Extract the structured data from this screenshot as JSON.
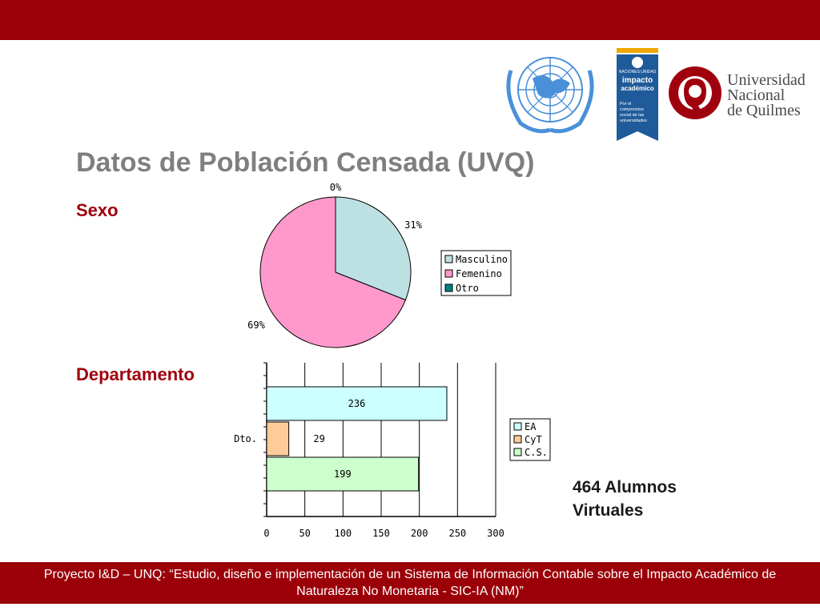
{
  "header": {},
  "footer": {
    "text": "Proyecto I&D – UNQ: “Estudio, diseño e implementación de un Sistema de Información Contable sobre el Impacto Académico de Naturaleza No Monetaria - SIC-IA (NM)”"
  },
  "title": "Datos de Población Censada (UVQ)",
  "sections": {
    "sexo": "Sexo",
    "departamento": "Departamento"
  },
  "summary": {
    "line1": "464 Alumnos",
    "line2": "Virtuales"
  },
  "logos": {
    "un_logo": "un-emblem-icon",
    "impacto": {
      "top": "NACIONES UNIDAS",
      "line1": "impacto",
      "line2": "académico",
      "sub1": "Por el",
      "sub2": "compromiso",
      "sub3": "social de las",
      "sub4": "universidades"
    },
    "unq": {
      "line1": "Universidad",
      "line2": "Nacional",
      "line3": "de Quilmes"
    }
  },
  "colors": {
    "brand": "#9b0008",
    "section": "#a0000d",
    "title": "#7f7f7f"
  },
  "chart_data": [
    {
      "type": "pie",
      "labels": [
        "Masculino",
        "Femenino",
        "Otro"
      ],
      "values": [
        31,
        69,
        0
      ],
      "value_labels": [
        "31%",
        "69%",
        "0%"
      ],
      "colors": [
        "#bde0e3",
        "#ff99cc",
        "#008080"
      ],
      "legend": "right"
    },
    {
      "type": "bar",
      "orientation": "horizontal",
      "categories": [
        "Dto."
      ],
      "series": [
        {
          "name": "EA",
          "values": [
            236
          ],
          "color": "#ccffff"
        },
        {
          "name": "CyT",
          "values": [
            29
          ],
          "color": "#ffcc99"
        },
        {
          "name": "C.S.",
          "values": [
            199
          ],
          "color": "#ccffcc"
        }
      ],
      "xlim": [
        0,
        300
      ],
      "xticks": [
        0,
        50,
        100,
        150,
        200,
        250,
        300
      ],
      "grid": true,
      "legend": "right"
    }
  ]
}
